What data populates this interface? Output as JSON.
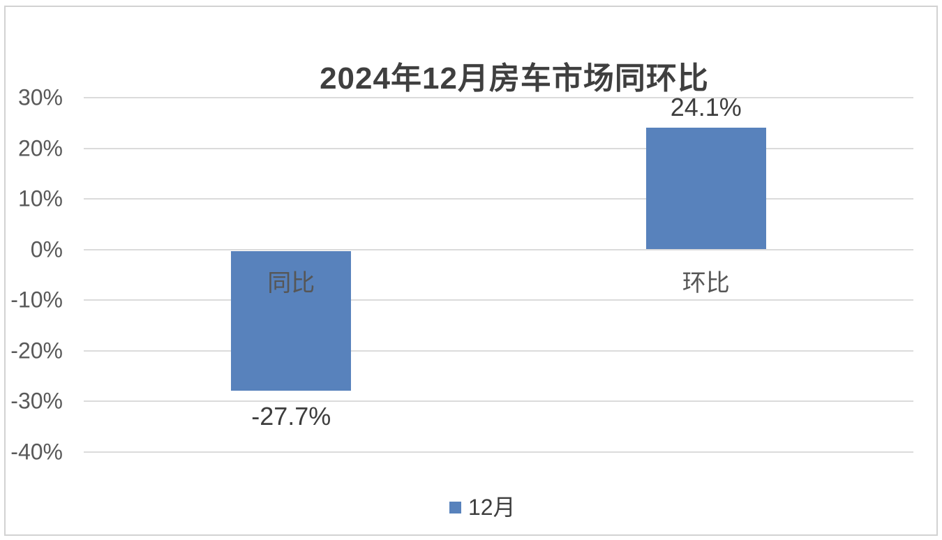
{
  "chart_data": {
    "type": "bar",
    "title": "2024年12月房车市场同环比",
    "categories": [
      "同比",
      "环比"
    ],
    "series": [
      {
        "name": "12月",
        "values": [
          -27.7,
          24.1
        ],
        "color": "#5882BC"
      }
    ],
    "data_labels": [
      "-27.7%",
      "24.1%"
    ],
    "yaxis": {
      "tick_values": [
        30,
        20,
        10,
        0,
        -10,
        -20,
        -30,
        -40
      ],
      "tick_labels": [
        "30%",
        "20%",
        "10%",
        "0%",
        "-10%",
        "-20%",
        "-30%",
        "-40%"
      ],
      "unit": "percent",
      "range_shown": [
        -40,
        30
      ]
    },
    "grid": true,
    "legend": {
      "entries": [
        "12月"
      ],
      "position": "bottom-center"
    }
  },
  "colors": {
    "bar_fill": "#5882BC",
    "gridline": "#dbdbdb",
    "tick_text": "#595959",
    "category_text": "#565656",
    "data_label_text": "#3d3d3d",
    "title_text": "#3f3f3f",
    "border": "#d2d2d2",
    "background": "#ffffff"
  }
}
